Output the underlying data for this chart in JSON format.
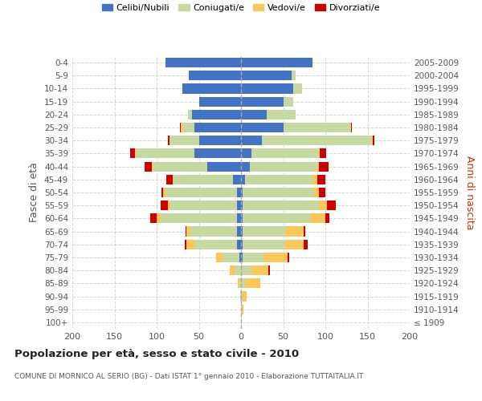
{
  "age_groups": [
    "100+",
    "95-99",
    "90-94",
    "85-89",
    "80-84",
    "75-79",
    "70-74",
    "65-69",
    "60-64",
    "55-59",
    "50-54",
    "45-49",
    "40-44",
    "35-39",
    "30-34",
    "25-29",
    "20-24",
    "15-19",
    "10-14",
    "5-9",
    "0-4"
  ],
  "birth_years": [
    "≤ 1909",
    "1910-1914",
    "1915-1919",
    "1920-1924",
    "1925-1929",
    "1930-1934",
    "1935-1939",
    "1940-1944",
    "1945-1949",
    "1950-1954",
    "1955-1959",
    "1960-1964",
    "1965-1969",
    "1970-1974",
    "1975-1979",
    "1980-1984",
    "1985-1989",
    "1990-1994",
    "1995-1999",
    "2000-2004",
    "2005-2009"
  ],
  "males": {
    "celibi": [
      0,
      0,
      0,
      0,
      0,
      2,
      5,
      5,
      5,
      5,
      5,
      10,
      40,
      55,
      50,
      55,
      58,
      50,
      70,
      62,
      90
    ],
    "coniugati": [
      0,
      0,
      1,
      2,
      8,
      20,
      50,
      55,
      90,
      80,
      85,
      70,
      65,
      70,
      35,
      15,
      5,
      0,
      0,
      0,
      0
    ],
    "vedovi": [
      0,
      0,
      0,
      2,
      5,
      8,
      10,
      5,
      5,
      2,
      2,
      1,
      1,
      1,
      0,
      1,
      0,
      0,
      0,
      0,
      0
    ],
    "divorziati": [
      0,
      0,
      0,
      0,
      0,
      0,
      2,
      1,
      8,
      8,
      2,
      8,
      8,
      5,
      2,
      1,
      0,
      0,
      0,
      0,
      0
    ]
  },
  "females": {
    "nubili": [
      0,
      0,
      0,
      0,
      0,
      2,
      2,
      2,
      2,
      2,
      2,
      5,
      10,
      12,
      25,
      50,
      30,
      50,
      62,
      60,
      85
    ],
    "coniugate": [
      0,
      1,
      2,
      5,
      12,
      25,
      50,
      50,
      80,
      90,
      85,
      80,
      80,
      80,
      130,
      80,
      35,
      12,
      10,
      5,
      0
    ],
    "vedove": [
      0,
      2,
      5,
      18,
      20,
      28,
      22,
      22,
      18,
      10,
      5,
      5,
      2,
      1,
      1,
      0,
      0,
      0,
      0,
      0,
      0
    ],
    "divorziate": [
      0,
      0,
      0,
      0,
      2,
      2,
      5,
      2,
      5,
      10,
      8,
      10,
      12,
      8,
      2,
      1,
      0,
      0,
      0,
      0,
      0
    ]
  },
  "colors": {
    "celibi_nubili": "#4472C4",
    "coniugati": "#C5D9A0",
    "vedovi": "#FAC858",
    "divorziati": "#CC0000"
  },
  "xlim": 200,
  "title": "Popolazione per età, sesso e stato civile - 2010",
  "subtitle": "COMUNE DI MORNICO AL SERIO (BG) - Dati ISTAT 1° gennaio 2010 - Elaborazione TUTTAITALIA.IT",
  "ylabel_left": "Fasce di età",
  "ylabel_right": "Anni di nascita",
  "legend_labels": [
    "Celibi/Nubili",
    "Coniugati/e",
    "Vedovi/e",
    "Divorziati/e"
  ],
  "background_color": "#ffffff",
  "grid_color": "#cccccc"
}
